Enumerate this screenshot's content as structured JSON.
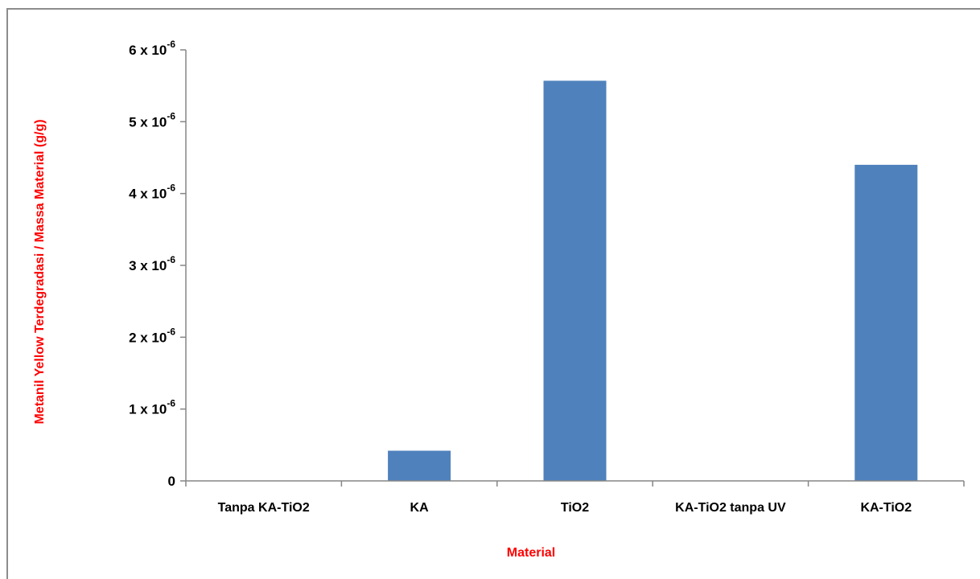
{
  "chart_data": {
    "type": "bar",
    "categories": [
      "Tanpa KA-TiO2",
      "KA",
      "TiO2",
      "KA-TiO2 tanpa UV",
      "KA-TiO2"
    ],
    "values": [
      0,
      4.2e-07,
      5.57e-06,
      0,
      4.4e-06
    ],
    "xlabel": "Material",
    "ylabel": "Metanil Yellow Terdegradasi / Massa Material (g/g)",
    "ylim": [
      0,
      6e-06
    ],
    "yticks": [
      {
        "value": 0,
        "mantissa": "0",
        "exponent": ""
      },
      {
        "value": 1e-06,
        "mantissa": "1 x 10",
        "exponent": "-6"
      },
      {
        "value": 2e-06,
        "mantissa": "2 x 10",
        "exponent": "-6"
      },
      {
        "value": 3e-06,
        "mantissa": "3 x 10",
        "exponent": "-6"
      },
      {
        "value": 4e-06,
        "mantissa": "4 x 10",
        "exponent": "-6"
      },
      {
        "value": 5e-06,
        "mantissa": "5 x 10",
        "exponent": "-6"
      },
      {
        "value": 6e-06,
        "mantissa": "6 x 10",
        "exponent": "-6"
      }
    ],
    "grid": false,
    "legend": "none",
    "bar_color": "#4f81bd",
    "axis_title_color": "#ff0000"
  }
}
